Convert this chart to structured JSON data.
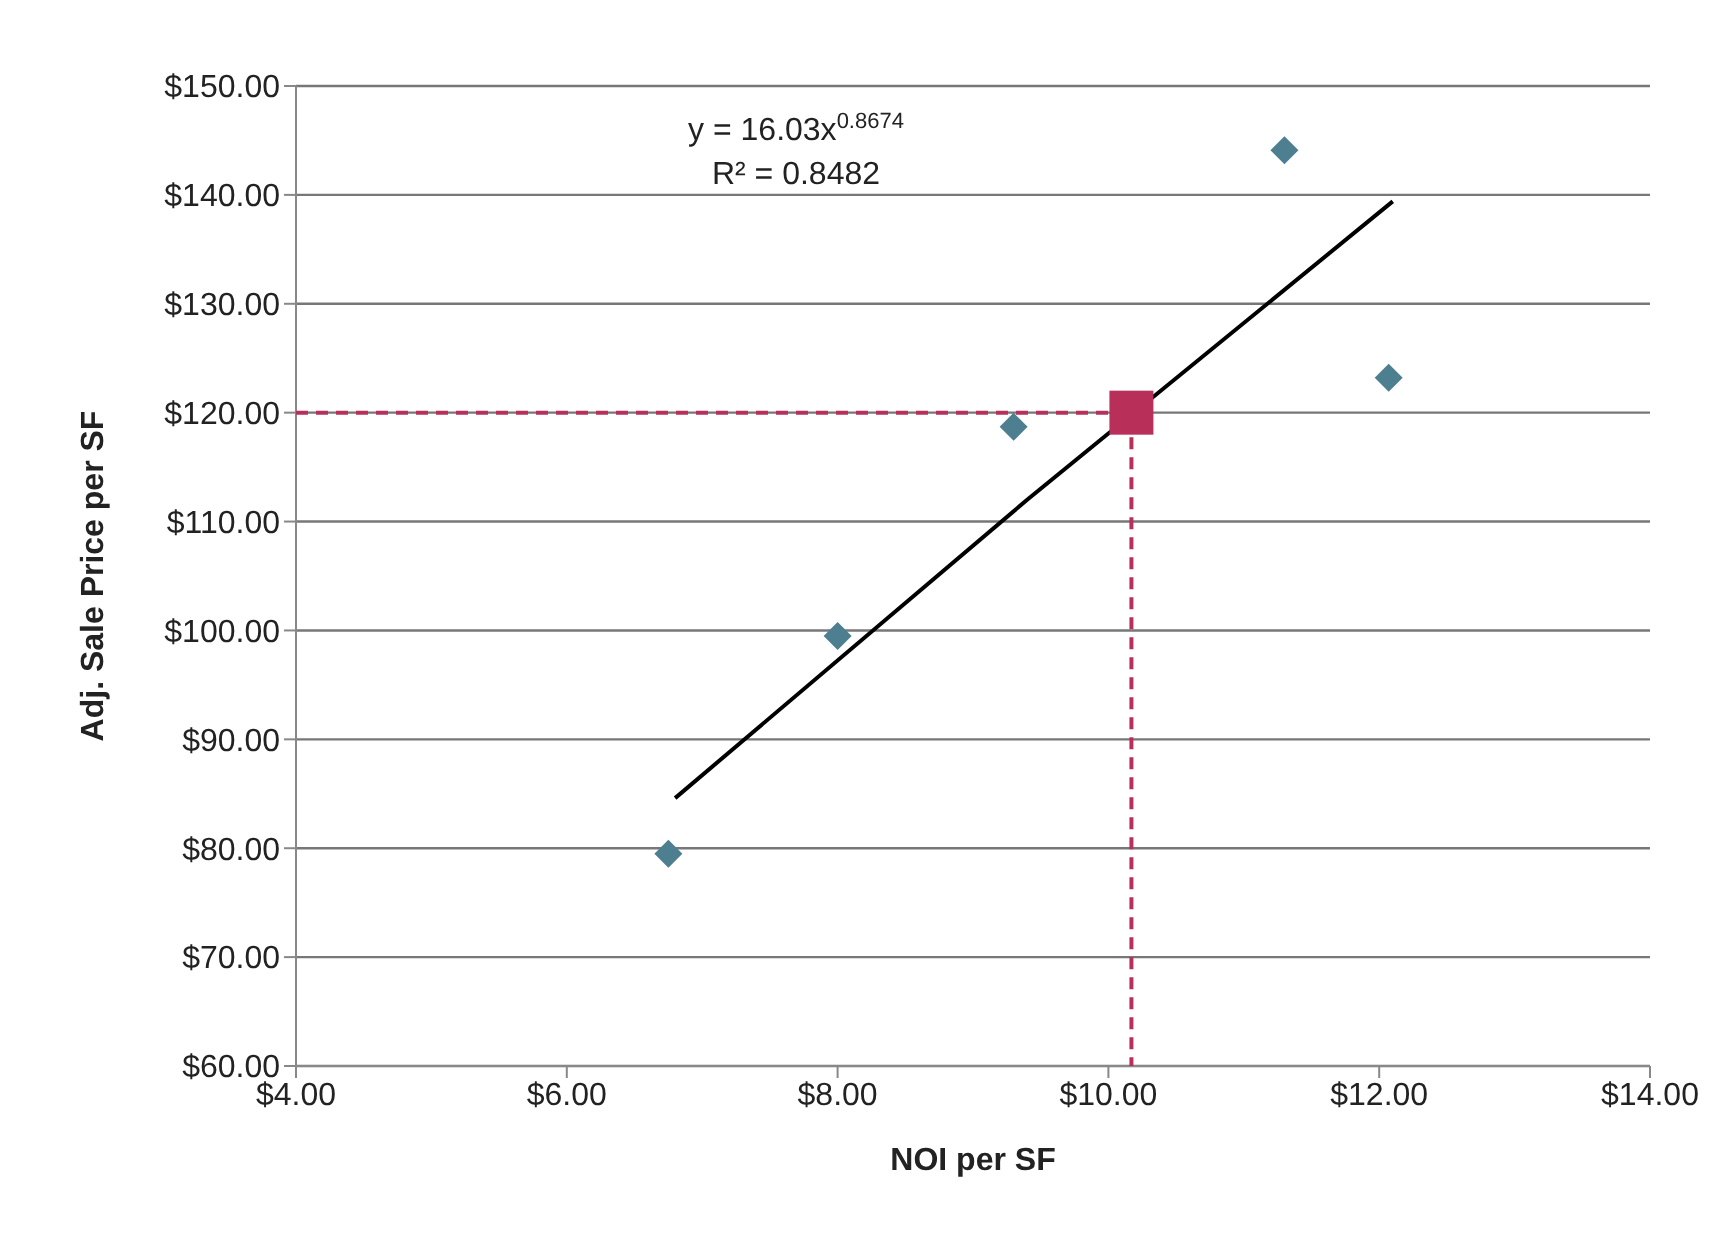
{
  "chart_data": {
    "type": "scatter",
    "xlabel": "NOI per SF",
    "ylabel": "Adj. Sale Price per SF",
    "series": [
      {
        "color": "#4e7f91",
        "marker": "diamond",
        "x": [
          6.75,
          8.0,
          9.3,
          11.3,
          12.07
        ],
        "values": [
          79.5,
          99.5,
          118.7,
          144.1,
          123.2
        ]
      },
      {
        "type": "line",
        "color": "#b8305a",
        "marker": "none",
        "line_style": "dashed",
        "x": [
          4,
          10.17,
          10.17
        ],
        "values": [
          120,
          120,
          60
        ]
      },
      {
        "type": "scatter",
        "color": "#b8305a",
        "marker": "square",
        "x": [
          10.17
        ],
        "values": [
          120
        ]
      },
      {
        "type": "line",
        "color": "#000000",
        "marker": "none",
        "line_style": "solid",
        "x": [
          6.8,
          9.4,
          12.1
        ],
        "values": [
          84.6,
          112,
          139.4
        ]
      }
    ],
    "annotations": [
      "y = 16.03x$^{0.8674}$",
      "R² = 0.8482"
    ],
    "xlim": [
      4,
      14
    ],
    "xticks": [
      {
        "value": 4,
        "label": "$4.00"
      },
      {
        "value": 6,
        "label": "$6.00"
      },
      {
        "value": 8,
        "label": "$8.00"
      },
      {
        "value": 10,
        "label": "$10.00"
      },
      {
        "value": 12,
        "label": "$12.00"
      },
      {
        "value": 14,
        "label": "$14.00"
      }
    ],
    "ylim": [
      60,
      150
    ],
    "yticks": [
      {
        "value": 60,
        "label": "$60.00"
      },
      {
        "value": 70,
        "label": "$70.00"
      },
      {
        "value": 80,
        "label": "$80.00"
      },
      {
        "value": 90,
        "label": "$90.00"
      },
      {
        "value": 100,
        "label": "$100.00"
      },
      {
        "value": 110,
        "label": "$110.00"
      },
      {
        "value": 120,
        "label": "$120.00"
      },
      {
        "value": 130,
        "label": "$130.00"
      },
      {
        "value": 140,
        "label": "$140.00"
      },
      {
        "value": 150,
        "label": "$150.00"
      }
    ],
    "grid": "y",
    "legend": false
  }
}
